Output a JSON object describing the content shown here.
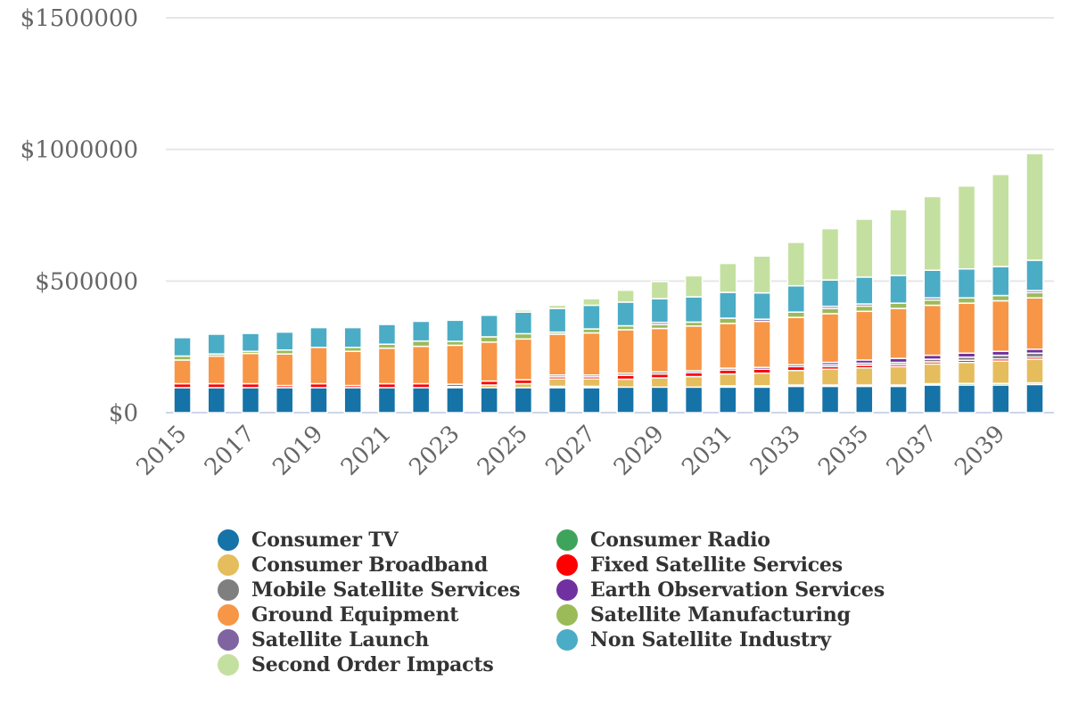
{
  "chart_data": {
    "type": "bar",
    "stacked": true,
    "title": "",
    "xlabel": "",
    "ylabel": "",
    "ylim": [
      0,
      1500000
    ],
    "yticks": [
      0,
      500000,
      1000000,
      1500000
    ],
    "ytick_labels": [
      "$0",
      "$500000",
      "$1000000",
      "$1500000"
    ],
    "grid": true,
    "legend_position": "bottom",
    "categories": [
      "2015",
      "2016",
      "2017",
      "2018",
      "2019",
      "2020",
      "2021",
      "2022",
      "2023",
      "2024",
      "2025",
      "2026",
      "2027",
      "2028",
      "2029",
      "2030",
      "2031",
      "2032",
      "2033",
      "2034",
      "2035",
      "2036",
      "2037",
      "2038",
      "2039",
      "2040"
    ],
    "xtick_labels": [
      "2015",
      "2017",
      "2019",
      "2021",
      "2023",
      "2025",
      "2027",
      "2029",
      "2031",
      "2033",
      "2035",
      "2037",
      "2039"
    ],
    "series": [
      {
        "name": "Consumer TV",
        "color": "#1673a8",
        "values": [
          95000,
          95000,
          95000,
          95000,
          95000,
          95000,
          95000,
          95000,
          95000,
          95000,
          95000,
          95000,
          95000,
          97000,
          97000,
          97000,
          97000,
          97000,
          100000,
          100000,
          100000,
          100000,
          105000,
          105000,
          105000,
          107000
        ]
      },
      {
        "name": "Consumer Radio",
        "color": "#3fa45b",
        "values": [
          0,
          0,
          0,
          0,
          0,
          0,
          0,
          0,
          0,
          0,
          0,
          5000,
          5000,
          0,
          0,
          0,
          5000,
          5000,
          5000,
          5000,
          5000,
          5000,
          5000,
          6000,
          6000,
          6000
        ]
      },
      {
        "name": "Consumer Broadband",
        "color": "#e5bd5c",
        "values": [
          0,
          0,
          0,
          0,
          0,
          0,
          0,
          0,
          5000,
          10000,
          15000,
          28000,
          28000,
          30000,
          35000,
          40000,
          45000,
          48000,
          55000,
          60000,
          65000,
          70000,
          75000,
          80000,
          85000,
          90000
        ]
      },
      {
        "name": "Fixed Satellite Services",
        "color": "#ff0000",
        "values": [
          15000,
          15000,
          15000,
          8000,
          15000,
          8000,
          15000,
          15000,
          8000,
          15000,
          15000,
          8000,
          8000,
          15000,
          15000,
          15000,
          15000,
          15000,
          15000,
          10000,
          10000,
          8000,
          8000,
          8000,
          8000,
          8000
        ]
      },
      {
        "name": "Mobile Satellite Services",
        "color": "#7f7f7f",
        "values": [
          0,
          0,
          0,
          0,
          0,
          0,
          0,
          0,
          0,
          0,
          0,
          7000,
          7000,
          8000,
          8000,
          0,
          0,
          0,
          0,
          7000,
          8000,
          8000,
          10000,
          12000,
          14000,
          15000
        ]
      },
      {
        "name": "Earth Observation Services",
        "color": "#7030a0",
        "values": [
          0,
          0,
          0,
          0,
          0,
          0,
          0,
          0,
          0,
          0,
          0,
          0,
          0,
          0,
          0,
          7000,
          7000,
          7000,
          7000,
          9000,
          12000,
          15000,
          15000,
          15000,
          15000,
          15000
        ]
      },
      {
        "name": "Ground Equipment",
        "color": "#f79646",
        "values": [
          90000,
          105000,
          115000,
          120000,
          138000,
          130000,
          135000,
          142000,
          148000,
          148000,
          155000,
          155000,
          160000,
          165000,
          165000,
          170000,
          170000,
          175000,
          180000,
          185000,
          185000,
          190000,
          190000,
          190000,
          192000,
          195000
        ]
      },
      {
        "name": "Satellite Manufacturing",
        "color": "#9bbb59",
        "values": [
          15000,
          8000,
          8000,
          15000,
          0,
          15000,
          15000,
          20000,
          15000,
          20000,
          20000,
          8000,
          15000,
          15000,
          15000,
          15000,
          20000,
          0,
          20000,
          20000,
          20000,
          20000,
          20000,
          20000,
          20000,
          20000
        ]
      },
      {
        "name": "Satellite Launch",
        "color": "#8064a2",
        "values": [
          0,
          0,
          0,
          0,
          0,
          0,
          0,
          0,
          0,
          0,
          0,
          0,
          0,
          0,
          8000,
          0,
          0,
          8000,
          0,
          8000,
          8000,
          0,
          8000,
          0,
          0,
          8000
        ]
      },
      {
        "name": "Non Satellite Industry",
        "color": "#4bacc6",
        "values": [
          70000,
          75000,
          68000,
          68000,
          75000,
          75000,
          75000,
          75000,
          80000,
          82000,
          82000,
          90000,
          90000,
          90000,
          90000,
          96000,
          98000,
          100000,
          100000,
          100000,
          102000,
          105000,
          105000,
          110000,
          110000,
          115000
        ]
      },
      {
        "name": "Second Order Impacts",
        "color": "#c4e0a0",
        "values": [
          0,
          0,
          0,
          0,
          0,
          0,
          0,
          0,
          0,
          5000,
          8000,
          12000,
          25000,
          45000,
          65000,
          80000,
          110000,
          140000,
          165000,
          195000,
          220000,
          250000,
          280000,
          315000,
          350000,
          405000
        ]
      }
    ]
  },
  "legend": {
    "items": [
      {
        "label": "Consumer TV",
        "color": "#1673a8"
      },
      {
        "label": "Consumer Broadband",
        "color": "#e5bd5c"
      },
      {
        "label": "Mobile Satellite Services",
        "color": "#7f7f7f"
      },
      {
        "label": "Ground Equipment",
        "color": "#f79646"
      },
      {
        "label": "Satellite Launch",
        "color": "#8064a2"
      },
      {
        "label": "Second Order Impacts",
        "color": "#c4e0a0"
      },
      {
        "label": "Consumer Radio",
        "color": "#3fa45b"
      },
      {
        "label": "Fixed Satellite Services",
        "color": "#ff0000"
      },
      {
        "label": "Earth Observation Services",
        "color": "#7030a0"
      },
      {
        "label": "Satellite Manufacturing",
        "color": "#9bbb59"
      },
      {
        "label": "Non Satellite Industry",
        "color": "#4bacc6"
      }
    ]
  }
}
